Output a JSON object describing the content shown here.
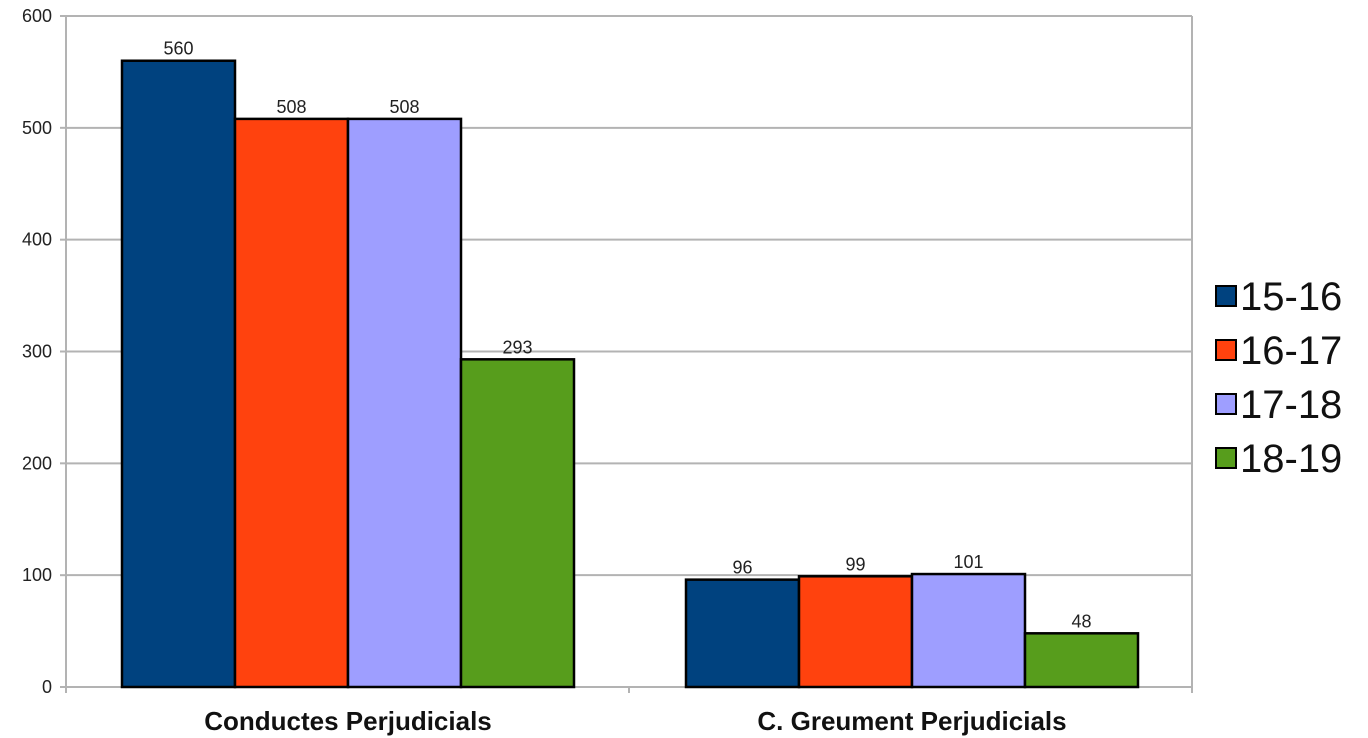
{
  "chart_data": {
    "type": "bar",
    "categories": [
      "Conductes Perjudicials",
      "C. Greument Perjudicials"
    ],
    "series": [
      {
        "name": "15-16",
        "values": [
          560,
          96
        ],
        "color": "#00427f"
      },
      {
        "name": "16-17",
        "values": [
          508,
          99
        ],
        "color": "#ff420e"
      },
      {
        "name": "17-18",
        "values": [
          508,
          101
        ],
        "color": "#9e9eff"
      },
      {
        "name": "18-19",
        "values": [
          293,
          48
        ],
        "color": "#579d1c"
      }
    ],
    "title": "",
    "xlabel": "",
    "ylabel": "",
    "ylim": [
      0,
      600
    ],
    "yticks": [
      0,
      100,
      200,
      300,
      400,
      500,
      600
    ],
    "data_labels": true,
    "grid": true,
    "legend_position": "right"
  }
}
